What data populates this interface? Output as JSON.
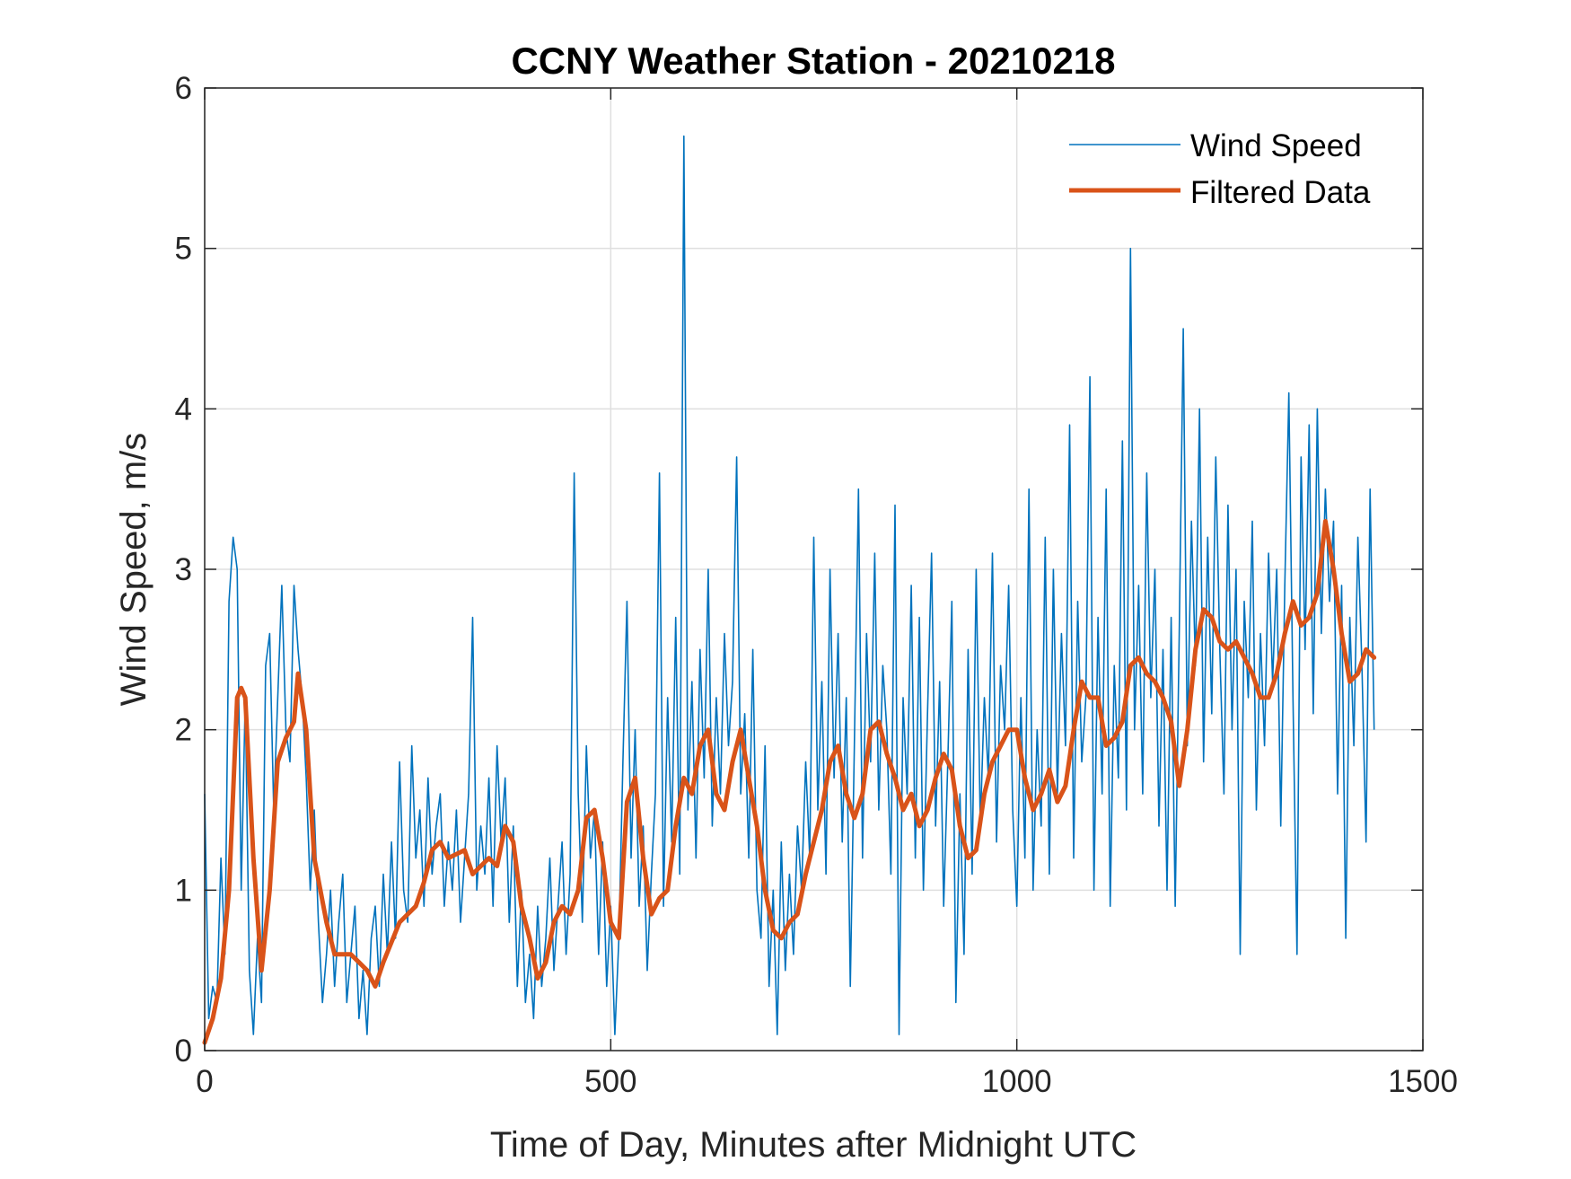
{
  "chart_data": {
    "type": "line",
    "title": "CCNY Weather Station - 20210218",
    "xlabel": "Time of Day, Minutes after Midnight UTC",
    "ylabel": "Wind Speed, m/s",
    "xlim": [
      0,
      1500
    ],
    "ylim": [
      0,
      6
    ],
    "xticks": [
      0,
      500,
      1000,
      1500
    ],
    "yticks": [
      0,
      1,
      2,
      3,
      4,
      5,
      6
    ],
    "xtick_labels": [
      "0",
      "500",
      "1000",
      "1500"
    ],
    "ytick_labels": [
      "0",
      "1",
      "2",
      "3",
      "4",
      "5",
      "6"
    ],
    "grid": true,
    "legend_position": "top-right",
    "series": [
      {
        "name": "Wind Speed",
        "color": "#0072BD",
        "x_step": 5,
        "values": [
          1.6,
          0.2,
          0.4,
          0.3,
          1.2,
          0.6,
          2.8,
          3.2,
          3.0,
          1.0,
          2.2,
          0.5,
          0.1,
          0.7,
          0.3,
          2.4,
          2.6,
          1.5,
          2.2,
          2.9,
          2.0,
          1.8,
          2.9,
          2.5,
          2.2,
          1.7,
          1.0,
          1.5,
          0.8,
          0.3,
          0.6,
          1.0,
          0.4,
          0.8,
          1.1,
          0.3,
          0.6,
          0.9,
          0.2,
          0.5,
          0.1,
          0.7,
          0.9,
          0.4,
          1.1,
          0.6,
          1.3,
          0.7,
          1.8,
          1.0,
          0.8,
          1.9,
          1.2,
          1.5,
          0.9,
          1.7,
          1.1,
          1.4,
          1.6,
          0.9,
          1.3,
          1.0,
          1.5,
          0.8,
          1.2,
          1.6,
          2.7,
          1.0,
          1.4,
          1.1,
          1.7,
          0.9,
          1.9,
          1.3,
          1.7,
          0.8,
          1.4,
          0.4,
          1.0,
          0.3,
          0.6,
          0.2,
          0.9,
          0.4,
          0.7,
          1.2,
          0.5,
          0.9,
          1.3,
          0.6,
          1.1,
          3.6,
          1.6,
          0.8,
          1.9,
          1.2,
          1.5,
          0.6,
          1.3,
          0.4,
          0.9,
          0.1,
          0.7,
          1.8,
          2.8,
          1.2,
          2.0,
          0.9,
          1.4,
          0.5,
          1.1,
          1.6,
          3.6,
          0.9,
          2.2,
          1.3,
          2.7,
          1.1,
          5.7,
          1.5,
          2.3,
          1.2,
          2.5,
          1.7,
          3.0,
          1.4,
          2.2,
          1.6,
          2.6,
          1.9,
          2.3,
          3.7,
          1.6,
          2.1,
          1.2,
          2.5,
          1.0,
          0.7,
          1.9,
          0.4,
          1.0,
          0.1,
          1.3,
          0.5,
          1.1,
          0.6,
          1.4,
          1.0,
          1.8,
          1.2,
          3.2,
          1.5,
          2.3,
          1.1,
          3.0,
          1.7,
          2.6,
          1.3,
          2.2,
          0.4,
          1.9,
          3.5,
          1.2,
          2.6,
          1.8,
          3.1,
          1.5,
          2.4,
          2.0,
          1.1,
          3.4,
          0.1,
          2.2,
          1.6,
          2.9,
          1.2,
          2.7,
          1.0,
          2.1,
          3.1,
          1.4,
          2.3,
          0.9,
          1.8,
          2.8,
          0.3,
          1.6,
          0.6,
          2.5,
          1.1,
          3.0,
          1.4,
          2.2,
          1.7,
          3.1,
          1.3,
          2.4,
          2.0,
          2.9,
          1.5,
          0.9,
          2.2,
          1.2,
          3.5,
          1.0,
          2.0,
          1.4,
          3.2,
          1.1,
          3.0,
          1.6,
          2.6,
          1.9,
          3.9,
          1.2,
          2.8,
          1.8,
          2.2,
          4.2,
          1.0,
          2.7,
          1.6,
          3.5,
          0.9,
          2.4,
          1.7,
          3.8,
          1.5,
          5.0,
          2.0,
          2.9,
          1.6,
          3.6,
          2.2,
          3.0,
          1.4,
          2.5,
          1.0,
          2.7,
          0.9,
          2.6,
          4.5,
          1.9,
          3.3,
          2.4,
          4.0,
          1.8,
          3.2,
          2.1,
          3.7,
          2.5,
          1.6,
          3.4,
          2.0,
          3.0,
          0.6,
          2.8,
          2.2,
          3.3,
          1.5,
          2.6,
          1.9,
          3.1,
          2.3,
          3.0,
          1.4,
          2.9,
          4.1,
          2.2,
          0.6,
          3.7,
          2.5,
          3.9,
          2.1,
          4.0,
          2.6,
          3.5,
          2.8,
          3.3,
          1.6,
          2.9,
          0.7,
          2.7,
          1.9,
          3.2,
          2.4,
          1.3,
          3.5,
          2.0
        ]
      },
      {
        "name": "Filtered Data",
        "color": "#D95319",
        "x": [
          0,
          10,
          20,
          30,
          40,
          45,
          50,
          60,
          70,
          80,
          90,
          100,
          110,
          115,
          125,
          135,
          150,
          160,
          180,
          190,
          200,
          210,
          220,
          240,
          260,
          270,
          280,
          290,
          300,
          320,
          330,
          340,
          350,
          360,
          370,
          380,
          390,
          400,
          410,
          420,
          430,
          440,
          450,
          460,
          470,
          480,
          490,
          500,
          510,
          520,
          530,
          540,
          550,
          560,
          570,
          580,
          590,
          600,
          610,
          620,
          630,
          640,
          650,
          660,
          670,
          680,
          690,
          700,
          710,
          720,
          730,
          740,
          750,
          760,
          770,
          780,
          790,
          800,
          810,
          820,
          830,
          840,
          850,
          860,
          870,
          880,
          890,
          900,
          910,
          920,
          930,
          940,
          950,
          960,
          970,
          980,
          990,
          1000,
          1010,
          1020,
          1030,
          1040,
          1050,
          1060,
          1070,
          1080,
          1090,
          1100,
          1110,
          1120,
          1130,
          1140,
          1150,
          1160,
          1170,
          1180,
          1190,
          1200,
          1210,
          1220,
          1230,
          1240,
          1250,
          1260,
          1270,
          1280,
          1290,
          1300,
          1310,
          1320,
          1330,
          1340,
          1350,
          1360,
          1370,
          1380,
          1390,
          1400,
          1410,
          1420,
          1430,
          1440
        ],
        "values": [
          0.05,
          0.2,
          0.45,
          1.0,
          2.2,
          2.26,
          2.2,
          1.2,
          0.5,
          1.0,
          1.8,
          1.95,
          2.05,
          2.35,
          2.0,
          1.2,
          0.8,
          0.6,
          0.6,
          0.55,
          0.5,
          0.4,
          0.55,
          0.8,
          0.9,
          1.05,
          1.25,
          1.3,
          1.2,
          1.25,
          1.1,
          1.15,
          1.2,
          1.15,
          1.4,
          1.3,
          0.9,
          0.7,
          0.45,
          0.55,
          0.8,
          0.9,
          0.85,
          1.0,
          1.45,
          1.5,
          1.2,
          0.8,
          0.7,
          1.55,
          1.7,
          1.2,
          0.85,
          0.95,
          1.0,
          1.4,
          1.7,
          1.6,
          1.9,
          2.0,
          1.6,
          1.5,
          1.8,
          2.0,
          1.7,
          1.4,
          1.0,
          0.75,
          0.7,
          0.8,
          0.85,
          1.1,
          1.3,
          1.5,
          1.8,
          1.9,
          1.6,
          1.45,
          1.6,
          2.0,
          2.05,
          1.85,
          1.7,
          1.5,
          1.6,
          1.4,
          1.5,
          1.7,
          1.85,
          1.75,
          1.4,
          1.2,
          1.25,
          1.6,
          1.8,
          1.9,
          2.0,
          2.0,
          1.7,
          1.5,
          1.6,
          1.75,
          1.55,
          1.65,
          2.0,
          2.3,
          2.2,
          2.2,
          1.9,
          1.95,
          2.05,
          2.4,
          2.45,
          2.35,
          2.3,
          2.2,
          2.05,
          1.65,
          2.0,
          2.5,
          2.75,
          2.7,
          2.55,
          2.5,
          2.55,
          2.45,
          2.35,
          2.2,
          2.2,
          2.35,
          2.6,
          2.8,
          2.65,
          2.7,
          2.85,
          3.3,
          3.0,
          2.6,
          2.3,
          2.35,
          2.5,
          2.45
        ]
      }
    ]
  }
}
